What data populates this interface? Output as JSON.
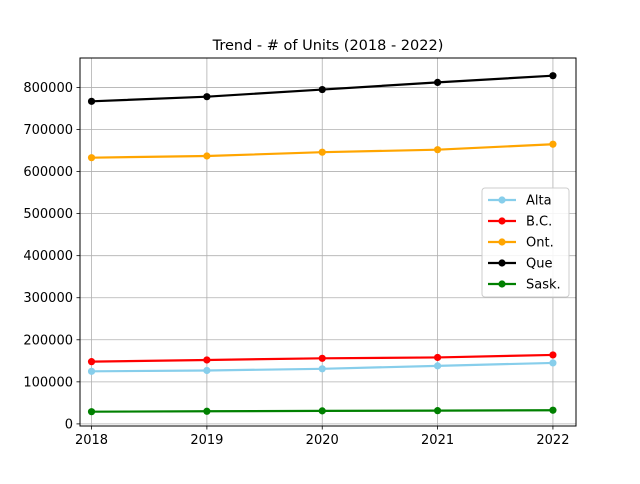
{
  "chart_data": {
    "type": "line",
    "title": "Trend - # of Units (2018 - 2022)",
    "xlabel": "",
    "ylabel": "",
    "x": [
      "2018",
      "2019",
      "2020",
      "2021",
      "2022"
    ],
    "xlim": [
      2017.9,
      2022.2
    ],
    "ylim": [
      -5000,
      870000
    ],
    "y_ticks": [
      0,
      100000,
      200000,
      300000,
      400000,
      500000,
      600000,
      700000,
      800000
    ],
    "y_tick_labels": [
      "0",
      "100000",
      "200000",
      "300000",
      "400000",
      "500000",
      "600000",
      "700000",
      "800000"
    ],
    "grid": true,
    "legend_position": "center-right",
    "series": [
      {
        "name": "Alta",
        "color": "#87ceeb",
        "values": [
          125000,
          127000,
          131000,
          138000,
          145000
        ]
      },
      {
        "name": "B.C.",
        "color": "#ff0000",
        "values": [
          148000,
          152000,
          156000,
          158000,
          164000
        ]
      },
      {
        "name": "Ont.",
        "color": "#ffa500",
        "values": [
          633000,
          637000,
          646000,
          652000,
          665000
        ]
      },
      {
        "name": "Que",
        "color": "#000000",
        "values": [
          767000,
          778000,
          795000,
          812000,
          828000
        ]
      },
      {
        "name": "Sask.",
        "color": "#008000",
        "values": [
          29000,
          30000,
          31000,
          31500,
          32500
        ]
      }
    ]
  }
}
